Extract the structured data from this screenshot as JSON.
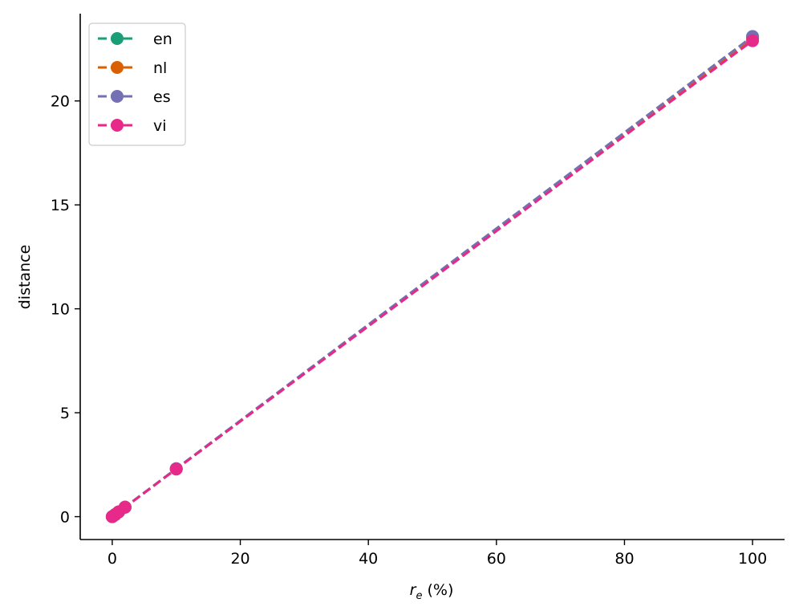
{
  "chart_data": {
    "type": "line",
    "xlabel_var": "r",
    "xlabel_sub": "e",
    "xlabel_rest": " (%)",
    "ylabel": "distance",
    "xlim": [
      -5,
      105
    ],
    "ylim": [
      -1.1,
      24.2
    ],
    "xticks": [
      0,
      20,
      40,
      60,
      80,
      100
    ],
    "xtick_labels": [
      "0",
      "20",
      "40",
      "60",
      "80",
      "100"
    ],
    "yticks": [
      0,
      5,
      10,
      15,
      20
    ],
    "ytick_labels": [
      "0",
      "5",
      "10",
      "15",
      "20"
    ],
    "grid": false,
    "legend_position": "top-left",
    "x": [
      0,
      0.1,
      0.5,
      1,
      2,
      10,
      100
    ],
    "series": [
      {
        "name": "en",
        "color": "#1b9e77",
        "values": [
          0,
          0.02,
          0.11,
          0.23,
          0.46,
          2.31,
          23.1
        ]
      },
      {
        "name": "nl",
        "color": "#d95f02",
        "values": [
          0,
          0.02,
          0.11,
          0.23,
          0.46,
          2.3,
          23.0
        ]
      },
      {
        "name": "es",
        "color": "#7570b3",
        "values": [
          0,
          0.02,
          0.11,
          0.23,
          0.46,
          2.31,
          23.1
        ]
      },
      {
        "name": "vi",
        "color": "#e7298a",
        "values": [
          0,
          0.02,
          0.11,
          0.23,
          0.45,
          2.29,
          22.9
        ]
      }
    ]
  }
}
